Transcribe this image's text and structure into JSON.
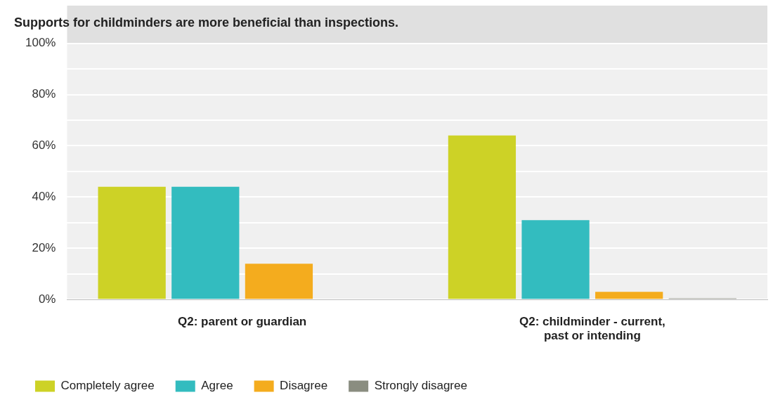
{
  "chart_data": {
    "type": "bar",
    "title": "Supports for childminders are more beneficial than inspections.",
    "categories": [
      "Q2: parent or guardian",
      "Q2: childminder - current, past or intending"
    ],
    "series": [
      {
        "name": "Completely agree",
        "color": "#cdd226",
        "values": [
          44,
          64
        ]
      },
      {
        "name": "Agree",
        "color": "#33bcbf",
        "values": [
          44,
          31
        ]
      },
      {
        "name": "Disagree",
        "color": "#f4ac1e",
        "values": [
          14,
          3
        ]
      },
      {
        "name": "Strongly disagree",
        "color": "#8a8d80",
        "values": [
          null,
          0.5
        ]
      }
    ],
    "ylim": [
      0,
      100
    ],
    "yticks": [
      {
        "value": 0,
        "label": "0%"
      },
      {
        "value": 10,
        "label": null
      },
      {
        "value": 20,
        "label": "20%"
      },
      {
        "value": 30,
        "label": null
      },
      {
        "value": 40,
        "label": "40%"
      },
      {
        "value": 50,
        "label": null
      },
      {
        "value": 60,
        "label": "60%"
      },
      {
        "value": 70,
        "label": null
      },
      {
        "value": 80,
        "label": "80%"
      },
      {
        "value": 90,
        "label": null
      },
      {
        "value": 100,
        "label": "100%"
      }
    ],
    "grid": "y",
    "legend": "bottom left"
  }
}
